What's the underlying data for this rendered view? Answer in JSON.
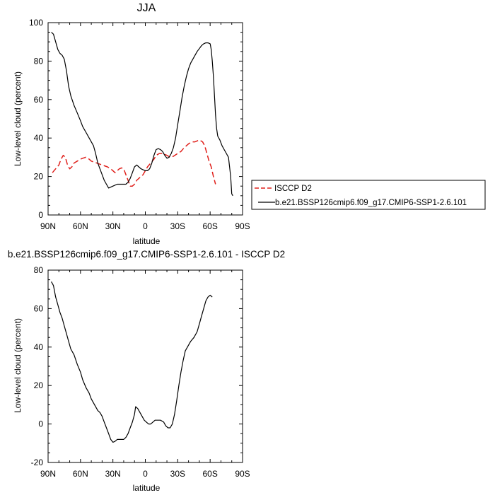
{
  "chart_data": [
    {
      "type": "line",
      "title": "JJA",
      "xlabel": "latitude",
      "ylabel": "Low-level cloud (percent)",
      "xlim": [
        90,
        -90
      ],
      "ylim": [
        0,
        100
      ],
      "xticks": [
        90,
        60,
        30,
        0,
        -30,
        -60,
        -90
      ],
      "xtick_labels": [
        "90N",
        "60N",
        "30N",
        "0",
        "30S",
        "60S",
        "90S"
      ],
      "yticks": [
        0,
        20,
        40,
        60,
        80,
        100
      ],
      "ytick_labels": [
        "0",
        "20",
        "40",
        "60",
        "80",
        "100"
      ],
      "legend_position": "outside-right",
      "series": [
        {
          "name": "ISCCP D2",
          "color": "#e0201b",
          "dash": "dashed",
          "points": [
            [
              86,
              22
            ],
            [
              83,
              24
            ],
            [
              80,
              26
            ],
            [
              78,
              29
            ],
            [
              76,
              31
            ],
            [
              74,
              30
            ],
            [
              72,
              26
            ],
            [
              70,
              24
            ],
            [
              68,
              25
            ],
            [
              66,
              27
            ],
            [
              63,
              28
            ],
            [
              60,
              29
            ],
            [
              58,
              29.5
            ],
            [
              55,
              30
            ],
            [
              52,
              29
            ],
            [
              50,
              28
            ],
            [
              45,
              27
            ],
            [
              40,
              26
            ],
            [
              35,
              25
            ],
            [
              32,
              24
            ],
            [
              30,
              23
            ],
            [
              28,
              22
            ],
            [
              26,
              23
            ],
            [
              24,
              24
            ],
            [
              22,
              24.5
            ],
            [
              20,
              24
            ],
            [
              18,
              21
            ],
            [
              16,
              18
            ],
            [
              14,
              15
            ],
            [
              12,
              15
            ],
            [
              10,
              16
            ],
            [
              8,
              18
            ],
            [
              6,
              19
            ],
            [
              4,
              20
            ],
            [
              2,
              21
            ],
            [
              0,
              23
            ],
            [
              -2,
              25
            ],
            [
              -5,
              27
            ],
            [
              -8,
              29
            ],
            [
              -10,
              31
            ],
            [
              -13,
              32
            ],
            [
              -16,
              32
            ],
            [
              -20,
              31
            ],
            [
              -23,
              30
            ],
            [
              -26,
              30.5
            ],
            [
              -30,
              32
            ],
            [
              -33,
              33
            ],
            [
              -36,
              35
            ],
            [
              -40,
              37
            ],
            [
              -43,
              38
            ],
            [
              -46,
              38
            ],
            [
              -50,
              39
            ],
            [
              -53,
              38
            ],
            [
              -55,
              36
            ],
            [
              -57,
              32
            ],
            [
              -59,
              28
            ],
            [
              -61,
              25
            ],
            [
              -63,
              20
            ],
            [
              -65,
              16
            ]
          ]
        },
        {
          "name": "b.e21.BSSP126cmip6.f09_g17.CMIP6-SSP1-2.6.101",
          "color": "#000000",
          "dash": "solid",
          "points": [
            [
              87,
              95
            ],
            [
              85,
              94
            ],
            [
              83,
              90
            ],
            [
              81,
              86
            ],
            [
              79,
              84
            ],
            [
              77,
              83
            ],
            [
              75,
              81
            ],
            [
              73,
              75
            ],
            [
              71,
              67
            ],
            [
              69,
              62
            ],
            [
              66,
              57
            ],
            [
              63,
              53
            ],
            [
              60,
              49
            ],
            [
              58,
              46
            ],
            [
              55,
              43
            ],
            [
              52,
              40
            ],
            [
              50,
              38
            ],
            [
              48,
              36
            ],
            [
              46,
              32
            ],
            [
              44,
              27
            ],
            [
              42,
              24
            ],
            [
              40,
              21
            ],
            [
              38,
              18
            ],
            [
              36,
              16
            ],
            [
              34,
              14
            ],
            [
              30,
              15
            ],
            [
              26,
              16
            ],
            [
              22,
              16
            ],
            [
              20,
              16
            ],
            [
              18,
              16
            ],
            [
              16,
              17
            ],
            [
              14,
              19
            ],
            [
              12,
              22
            ],
            [
              10,
              25
            ],
            [
              8,
              26
            ],
            [
              6,
              25
            ],
            [
              4,
              24
            ],
            [
              2,
              23.5
            ],
            [
              0,
              23
            ],
            [
              -2,
              23
            ],
            [
              -4,
              24
            ],
            [
              -6,
              27
            ],
            [
              -8,
              31
            ],
            [
              -10,
              34
            ],
            [
              -12,
              34.5
            ],
            [
              -14,
              34
            ],
            [
              -16,
              33
            ],
            [
              -18,
              31
            ],
            [
              -20,
              29.5
            ],
            [
              -22,
              30
            ],
            [
              -24,
              32
            ],
            [
              -26,
              35
            ],
            [
              -28,
              40
            ],
            [
              -30,
              47
            ],
            [
              -32,
              54
            ],
            [
              -34,
              61
            ],
            [
              -36,
              67
            ],
            [
              -38,
              72
            ],
            [
              -40,
              76
            ],
            [
              -42,
              79
            ],
            [
              -44,
              81
            ],
            [
              -46,
              83
            ],
            [
              -48,
              85
            ],
            [
              -50,
              86.5
            ],
            [
              -52,
              88
            ],
            [
              -54,
              89
            ],
            [
              -56,
              89.5
            ],
            [
              -58,
              89.5
            ],
            [
              -60,
              89
            ],
            [
              -61,
              86
            ],
            [
              -62,
              80
            ],
            [
              -63,
              72
            ],
            [
              -64,
              62
            ],
            [
              -65,
              52
            ],
            [
              -66,
              45
            ],
            [
              -67,
              41
            ],
            [
              -69,
              39
            ],
            [
              -71,
              36
            ],
            [
              -73,
              34
            ],
            [
              -75,
              32
            ],
            [
              -77,
              30
            ],
            [
              -79,
              20
            ],
            [
              -80,
              11
            ],
            [
              -81,
              10
            ]
          ]
        }
      ]
    },
    {
      "type": "line",
      "title": "b.e21.BSSP126cmip6.f09_g17.CMIP6-SSP1-2.6.101 - ISCCP D2",
      "xlabel": "latitude",
      "ylabel": "Low-level cloud (percent)",
      "xlim": [
        90,
        -90
      ],
      "ylim": [
        -20,
        80
      ],
      "xticks": [
        90,
        60,
        30,
        0,
        -30,
        -60,
        -90
      ],
      "xtick_labels": [
        "90N",
        "60N",
        "30N",
        "0",
        "30S",
        "60S",
        "90S"
      ],
      "yticks": [
        -20,
        0,
        20,
        40,
        60,
        80
      ],
      "ytick_labels": [
        "-20",
        "0",
        "20",
        "40",
        "60",
        "80"
      ],
      "series": [
        {
          "color": "#000000",
          "dash": "solid",
          "points": [
            [
              87,
              74
            ],
            [
              85,
              72
            ],
            [
              83,
              66
            ],
            [
              81,
              62
            ],
            [
              79,
              58
            ],
            [
              77,
              55
            ],
            [
              75,
              51
            ],
            [
              73,
              47
            ],
            [
              71,
              43
            ],
            [
              69,
              39
            ],
            [
              66,
              36
            ],
            [
              63,
              31
            ],
            [
              60,
              27
            ],
            [
              58,
              23
            ],
            [
              55,
              19
            ],
            [
              52,
              16
            ],
            [
              50,
              13
            ],
            [
              48,
              11
            ],
            [
              46,
              9
            ],
            [
              44,
              7
            ],
            [
              42,
              6
            ],
            [
              40,
              4
            ],
            [
              38,
              1
            ],
            [
              36,
              -2
            ],
            [
              34,
              -5
            ],
            [
              32,
              -8
            ],
            [
              30,
              -9.5
            ],
            [
              28,
              -9
            ],
            [
              26,
              -8
            ],
            [
              24,
              -8
            ],
            [
              20,
              -8
            ],
            [
              18,
              -7
            ],
            [
              16,
              -5
            ],
            [
              14,
              -2
            ],
            [
              12,
              1
            ],
            [
              10,
              5
            ],
            [
              9,
              9
            ],
            [
              7,
              8
            ],
            [
              5,
              6
            ],
            [
              3,
              4
            ],
            [
              1,
              2
            ],
            [
              -1,
              1
            ],
            [
              -3,
              0
            ],
            [
              -5,
              0
            ],
            [
              -7,
              1
            ],
            [
              -9,
              2
            ],
            [
              -11,
              2
            ],
            [
              -14,
              2
            ],
            [
              -17,
              1
            ],
            [
              -19,
              -1
            ],
            [
              -21,
              -2
            ],
            [
              -23,
              -2
            ],
            [
              -25,
              0
            ],
            [
              -27,
              5
            ],
            [
              -29,
              12
            ],
            [
              -31,
              20
            ],
            [
              -33,
              27
            ],
            [
              -35,
              33
            ],
            [
              -37,
              38
            ],
            [
              -40,
              41
            ],
            [
              -42,
              43
            ],
            [
              -45,
              45
            ],
            [
              -48,
              48
            ],
            [
              -50,
              52
            ],
            [
              -52,
              56
            ],
            [
              -54,
              60
            ],
            [
              -56,
              64
            ],
            [
              -58,
              66
            ],
            [
              -60,
              67
            ],
            [
              -62,
              66
            ]
          ]
        }
      ]
    }
  ]
}
